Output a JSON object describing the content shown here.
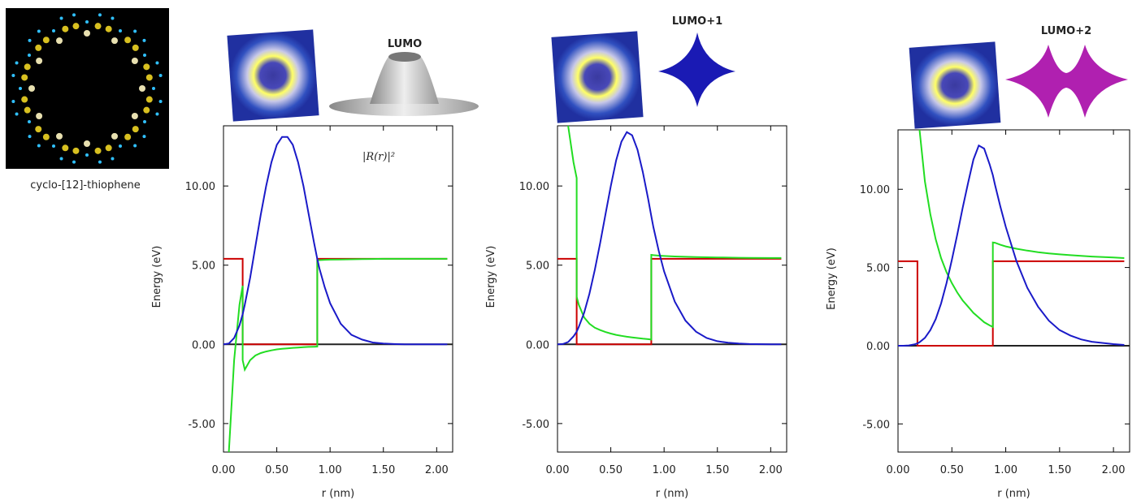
{
  "caption": "cyclo-[12]-thiophene",
  "chart_data": [
    {
      "type": "line",
      "title": "LUMO",
      "annotation": "|R(r)|²",
      "xlabel": "r (nm)",
      "ylabel": "Energy (eV)",
      "x": [
        0,
        0.05,
        0.1,
        0.15,
        0.18,
        0.18,
        0.2,
        0.25,
        0.3,
        0.35,
        0.4,
        0.45,
        0.5,
        0.55,
        0.6,
        0.65,
        0.7,
        0.75,
        0.8,
        0.85,
        0.88,
        0.88,
        0.9,
        0.95,
        1.0,
        1.1,
        1.2,
        1.3,
        1.4,
        1.5,
        1.6,
        1.7,
        1.8,
        2.0,
        2.1
      ],
      "series": [
        {
          "color": "#cc0000",
          "values": [
            5.4,
            5.4,
            5.4,
            5.4,
            5.4,
            0,
            0,
            0,
            0,
            0,
            0,
            0,
            0,
            0,
            0,
            0,
            0,
            0,
            0,
            0,
            0,
            5.4,
            5.4,
            5.4,
            5.4,
            5.4,
            5.4,
            5.4,
            5.4,
            5.4,
            5.4,
            5.4,
            5.4,
            5.4,
            5.4
          ]
        },
        {
          "color": "#22dd22",
          "values": [
            null,
            -6.8,
            -1,
            2.5,
            3.7,
            -1.0,
            -1.6,
            -1.0,
            -0.7,
            -0.55,
            -0.45,
            -0.38,
            -0.32,
            -0.28,
            -0.25,
            -0.22,
            -0.2,
            -0.18,
            -0.16,
            -0.15,
            -0.14,
            5.3,
            5.32,
            5.34,
            5.35,
            5.36,
            5.37,
            5.38,
            5.39,
            5.4,
            5.4,
            5.4,
            5.4,
            5.4,
            5.4
          ]
        },
        {
          "color": "#1a1ac8",
          "values": [
            0,
            0.05,
            0.4,
            1.2,
            1.9,
            1.9,
            2.5,
            4.2,
            6.2,
            8.2,
            10.0,
            11.5,
            12.6,
            13.1,
            13.1,
            12.6,
            11.5,
            10.0,
            8.2,
            6.4,
            5.4,
            5.4,
            4.8,
            3.6,
            2.6,
            1.3,
            0.6,
            0.3,
            0.12,
            0.05,
            0.02,
            0,
            0,
            0,
            0
          ]
        }
      ],
      "xlim": [
        0,
        2.15
      ],
      "ylim": [
        -6.8,
        13.8
      ],
      "xticks": [
        {
          "value": 0,
          "label": "0.00"
        },
        {
          "value": 0.5,
          "label": "0.50"
        },
        {
          "value": 1,
          "label": "1.00"
        },
        {
          "value": 1.5,
          "label": "1.50"
        },
        {
          "value": 2,
          "label": "2.00"
        }
      ],
      "yticks": [
        {
          "value": -5,
          "label": "-5.00"
        },
        {
          "value": 0,
          "label": "0.00"
        },
        {
          "value": 5,
          "label": "5.00"
        },
        {
          "value": 10,
          "label": "10.00"
        }
      ],
      "zero_line": true
    },
    {
      "type": "line",
      "title": "LUMO+1",
      "xlabel": "r (nm)",
      "ylabel": "Energy (eV)",
      "x": [
        0,
        0.05,
        0.1,
        0.15,
        0.18,
        0.18,
        0.2,
        0.25,
        0.3,
        0.35,
        0.4,
        0.45,
        0.5,
        0.55,
        0.6,
        0.65,
        0.7,
        0.75,
        0.8,
        0.85,
        0.88,
        0.88,
        0.9,
        0.95,
        1.0,
        1.1,
        1.2,
        1.3,
        1.4,
        1.5,
        1.6,
        1.7,
        1.8,
        2.0,
        2.1
      ],
      "series": [
        {
          "color": "#cc0000",
          "values": [
            5.4,
            5.4,
            5.4,
            5.4,
            5.4,
            0,
            0,
            0,
            0,
            0,
            0,
            0,
            0,
            0,
            0,
            0,
            0,
            0,
            0,
            0,
            0,
            5.4,
            5.4,
            5.4,
            5.4,
            5.4,
            5.4,
            5.4,
            5.4,
            5.4,
            5.4,
            5.4,
            5.4,
            5.4,
            5.4
          ]
        },
        {
          "color": "#22dd22",
          "values": [
            null,
            null,
            13.8,
            11.5,
            10.5,
            3.0,
            2.5,
            1.7,
            1.3,
            1.05,
            0.9,
            0.78,
            0.68,
            0.6,
            0.54,
            0.48,
            0.44,
            0.4,
            0.36,
            0.33,
            0.3,
            5.65,
            5.63,
            5.6,
            5.58,
            5.55,
            5.53,
            5.51,
            5.5,
            5.49,
            5.48,
            5.47,
            5.46,
            5.45,
            5.45
          ]
        },
        {
          "color": "#1a1ac8",
          "values": [
            0,
            0.02,
            0.15,
            0.5,
            0.8,
            0.8,
            1.1,
            2.0,
            3.2,
            4.7,
            6.4,
            8.2,
            10.0,
            11.6,
            12.8,
            13.4,
            13.2,
            12.3,
            10.9,
            9.2,
            8.1,
            8.1,
            7.4,
            5.9,
            4.6,
            2.7,
            1.5,
            0.8,
            0.4,
            0.2,
            0.1,
            0.05,
            0.02,
            0,
            0
          ]
        }
      ],
      "xlim": [
        0,
        2.15
      ],
      "ylim": [
        -6.8,
        13.8
      ],
      "xticks": [
        {
          "value": 0,
          "label": "0.00"
        },
        {
          "value": 0.5,
          "label": "0.50"
        },
        {
          "value": 1,
          "label": "1.00"
        },
        {
          "value": 1.5,
          "label": "1.50"
        },
        {
          "value": 2,
          "label": "2.00"
        }
      ],
      "yticks": [
        {
          "value": -5,
          "label": "-5.00"
        },
        {
          "value": 0,
          "label": "0.00"
        },
        {
          "value": 5,
          "label": "5.00"
        },
        {
          "value": 10,
          "label": "10.00"
        }
      ],
      "zero_line": true
    },
    {
      "type": "line",
      "title": "LUMO+2",
      "xlabel": "r (nm)",
      "ylabel": "Energy (eV)",
      "x": [
        0,
        0.05,
        0.1,
        0.15,
        0.18,
        0.18,
        0.2,
        0.25,
        0.3,
        0.35,
        0.4,
        0.45,
        0.5,
        0.55,
        0.6,
        0.65,
        0.7,
        0.75,
        0.8,
        0.85,
        0.88,
        0.88,
        0.9,
        0.95,
        1.0,
        1.1,
        1.2,
        1.3,
        1.4,
        1.5,
        1.6,
        1.7,
        1.8,
        2.0,
        2.1
      ],
      "series": [
        {
          "color": "#cc0000",
          "values": [
            5.4,
            5.4,
            5.4,
            5.4,
            5.4,
            0,
            0,
            0,
            0,
            0,
            0,
            0,
            0,
            0,
            0,
            0,
            0,
            0,
            0,
            0,
            0,
            5.4,
            5.4,
            5.4,
            5.4,
            5.4,
            5.4,
            5.4,
            5.4,
            5.4,
            5.4,
            5.4,
            5.4,
            5.4,
            5.4
          ]
        },
        {
          "color": "#22dd22",
          "values": [
            null,
            null,
            null,
            null,
            null,
            null,
            13.8,
            10.5,
            8.4,
            6.8,
            5.6,
            4.7,
            4.0,
            3.4,
            2.9,
            2.5,
            2.1,
            1.8,
            1.5,
            1.3,
            1.2,
            6.6,
            6.58,
            6.45,
            6.35,
            6.2,
            6.08,
            5.98,
            5.9,
            5.84,
            5.79,
            5.74,
            5.7,
            5.64,
            5.6
          ]
        },
        {
          "color": "#1a1ac8",
          "values": [
            0,
            0,
            0.02,
            0.08,
            0.15,
            0.15,
            0.22,
            0.5,
            1.0,
            1.7,
            2.7,
            4.0,
            5.5,
            7.1,
            8.8,
            10.4,
            11.9,
            12.8,
            12.6,
            11.6,
            10.9,
            10.9,
            10.3,
            8.9,
            7.6,
            5.4,
            3.7,
            2.5,
            1.6,
            1.0,
            0.65,
            0.4,
            0.25,
            0.1,
            0.05
          ]
        }
      ],
      "xlim": [
        0,
        2.15
      ],
      "ylim": [
        -6.8,
        13.8
      ],
      "xticks": [
        {
          "value": 0,
          "label": "0.00"
        },
        {
          "value": 0.5,
          "label": "0.50"
        },
        {
          "value": 1,
          "label": "1.00"
        },
        {
          "value": 1.5,
          "label": "1.50"
        },
        {
          "value": 2,
          "label": "2.00"
        }
      ],
      "yticks": [
        {
          "value": -5,
          "label": "-5.00"
        },
        {
          "value": 0,
          "label": "0.00"
        },
        {
          "value": 5,
          "label": "5.00"
        },
        {
          "value": 10,
          "label": "10.00"
        }
      ],
      "zero_line": true
    }
  ]
}
